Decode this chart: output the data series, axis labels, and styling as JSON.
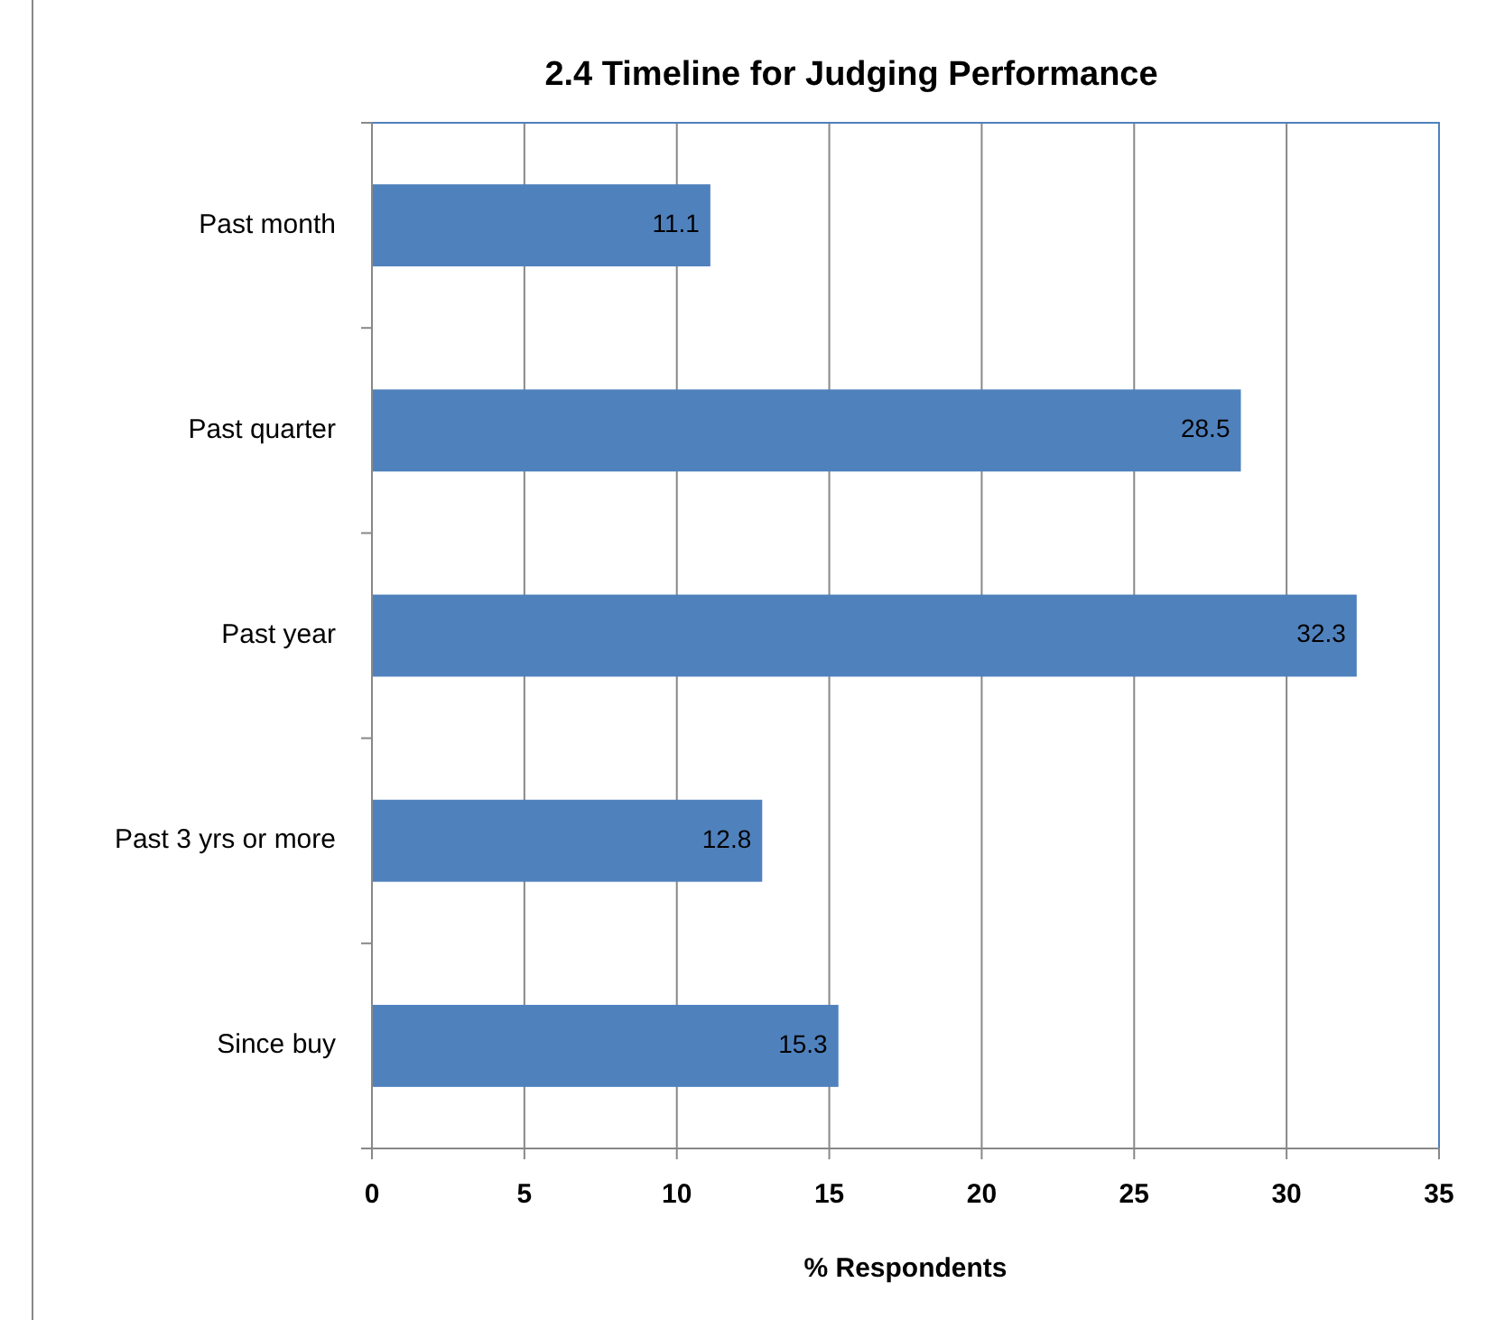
{
  "chart_data": {
    "type": "bar",
    "orientation": "horizontal",
    "title": "2.4  Timeline for Judging Performance",
    "xlabel": "% Respondents",
    "categories": [
      "Past month",
      "Past quarter",
      "Past year",
      "Past 3 yrs or more",
      "Since buy"
    ],
    "values": [
      11.1,
      28.5,
      32.3,
      12.8,
      15.3
    ],
    "color": "#4f81bd",
    "xlim": [
      0,
      35
    ],
    "xticks": [
      0,
      5,
      10,
      15,
      20,
      25,
      30,
      35
    ],
    "grid": "x",
    "data_labels": true
  }
}
